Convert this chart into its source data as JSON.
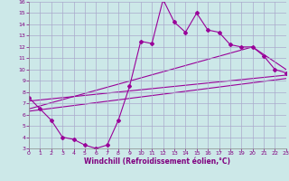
{
  "xlabel": "Windchill (Refroidissement éolien,°C)",
  "ylabel": "",
  "bg_color": "#cce8e8",
  "line_color": "#990099",
  "grid_color": "#aaaacc",
  "xlim": [
    0,
    23
  ],
  "ylim": [
    3,
    16
  ],
  "xticks": [
    0,
    1,
    2,
    3,
    4,
    5,
    6,
    7,
    8,
    9,
    10,
    11,
    12,
    13,
    14,
    15,
    16,
    17,
    18,
    19,
    20,
    21,
    22,
    23
  ],
  "yticks": [
    3,
    4,
    5,
    6,
    7,
    8,
    9,
    10,
    11,
    12,
    13,
    14,
    15,
    16
  ],
  "jagged_x": [
    0,
    1,
    2,
    3,
    4,
    5,
    6,
    7,
    8,
    9,
    10,
    11,
    12,
    13,
    14,
    15,
    16,
    17,
    18,
    19,
    20,
    21,
    22,
    23
  ],
  "jagged_y": [
    7.5,
    6.5,
    5.5,
    4.0,
    3.8,
    3.3,
    3.0,
    3.3,
    5.5,
    8.5,
    12.5,
    12.3,
    16.2,
    14.2,
    13.3,
    15.0,
    13.5,
    13.3,
    12.2,
    12.0,
    12.0,
    11.2,
    10.0,
    9.7
  ],
  "line1_x": [
    0,
    23
  ],
  "line1_y": [
    7.2,
    9.5
  ],
  "line2_x": [
    0,
    20,
    23
  ],
  "line2_y": [
    6.5,
    12.0,
    10.0
  ],
  "line3_x": [
    0,
    23
  ],
  "line3_y": [
    6.3,
    9.2
  ]
}
